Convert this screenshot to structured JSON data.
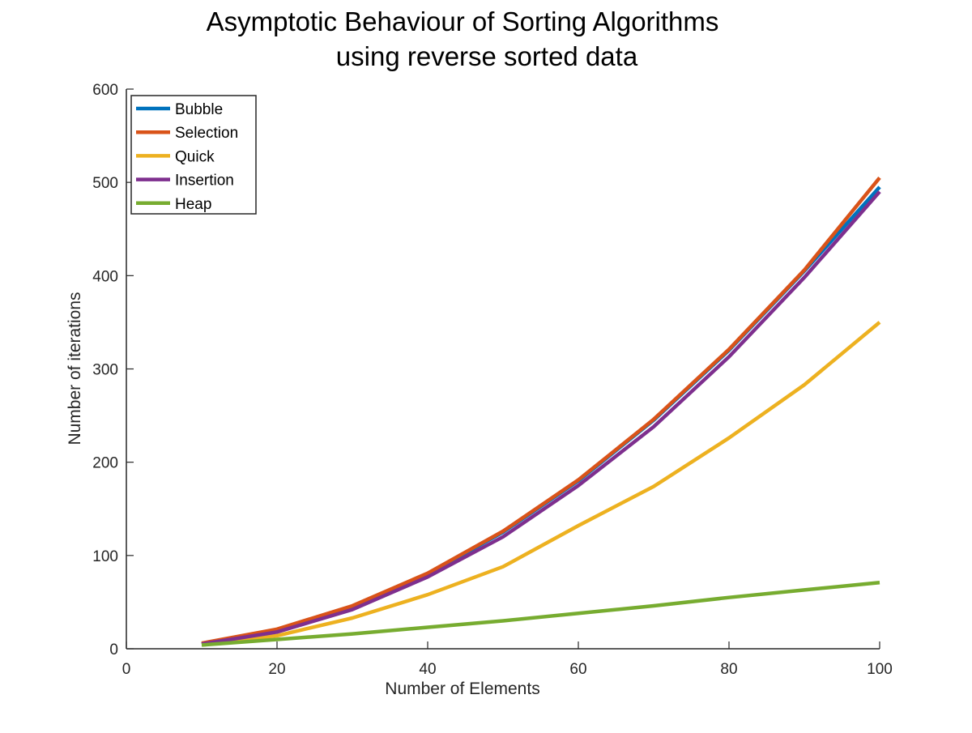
{
  "chart_data": {
    "type": "line",
    "title": [
      "Asymptotic Behaviour of Sorting Algorithms",
      "using reverse sorted data"
    ],
    "xlabel": "Number of Elements",
    "ylabel": "Number of iterations",
    "xlim": [
      0,
      100
    ],
    "ylim": [
      0,
      600
    ],
    "xticks": [
      0,
      20,
      40,
      60,
      80,
      100
    ],
    "yticks": [
      0,
      100,
      200,
      300,
      400,
      500,
      600
    ],
    "grid": false,
    "legend_position": "top-left",
    "x": [
      10,
      20,
      30,
      40,
      50,
      60,
      70,
      80,
      90,
      100
    ],
    "series": [
      {
        "name": "Bubble",
        "color": "#0072BD",
        "values": [
          5,
          20,
          45,
          80,
          125,
          180,
          245,
          320,
          405,
          495
        ]
      },
      {
        "name": "Selection",
        "color": "#D95319",
        "values": [
          6,
          21,
          46,
          81,
          126,
          181,
          246,
          321,
          406,
          505
        ]
      },
      {
        "name": "Quick",
        "color": "#EDB120",
        "values": [
          5,
          14,
          33,
          58,
          88,
          132,
          174,
          226,
          283,
          350
        ]
      },
      {
        "name": "Insertion",
        "color": "#7E2F8E",
        "values": [
          5,
          18,
          42,
          77,
          120,
          175,
          238,
          313,
          398,
          490
        ]
      },
      {
        "name": "Heap",
        "color": "#77AC30",
        "values": [
          4,
          10,
          16,
          23,
          30,
          38,
          46,
          55,
          63,
          71
        ]
      }
    ]
  }
}
